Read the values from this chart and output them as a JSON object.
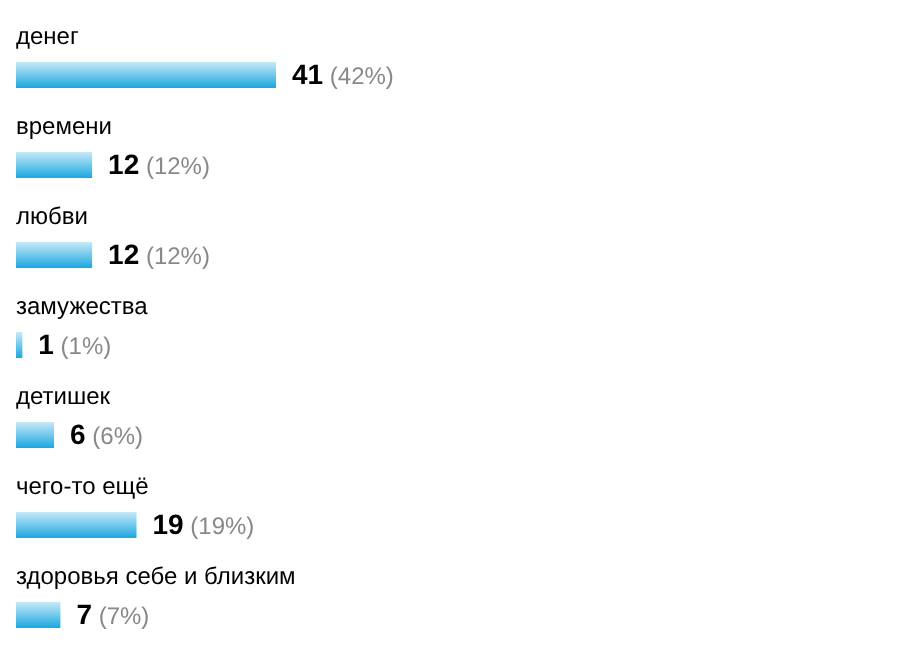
{
  "chart_data": {
    "type": "bar",
    "orientation": "horizontal",
    "categories": [
      "денег",
      "времени",
      "любви",
      "замужества",
      "детишек",
      "чего-то ещё",
      "здоровья себе и близким"
    ],
    "values": [
      41,
      12,
      12,
      1,
      6,
      19,
      7
    ],
    "color": "#1ba7e0",
    "value_labels": [
      "41 (42%)",
      "12 (12%)",
      "12 (12%)",
      "1 (1%)",
      "6 (6%)",
      "19 (19%)",
      "7 (7%)"
    ]
  }
}
